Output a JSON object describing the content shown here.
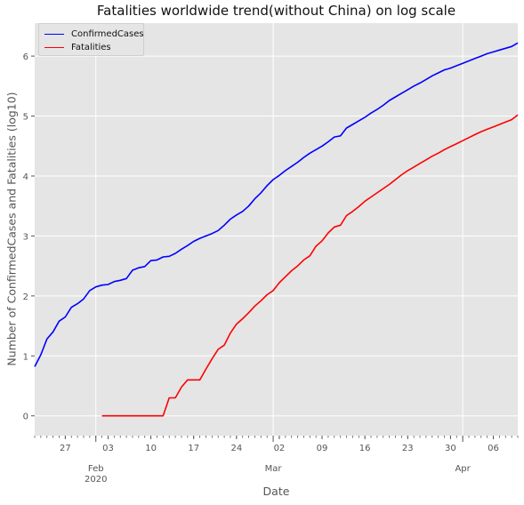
{
  "chart_data": {
    "type": "line",
    "title": "Fatalities worldwide trend(without China) on log scale",
    "xlabel": "Date",
    "ylabel": "Number of ConfirmedCases and Fatalities (log10)",
    "x_range": [
      "2020-01-22",
      "2020-04-10"
    ],
    "ylim": [
      -0.33,
      6.55
    ],
    "y_ticks": [
      0,
      1,
      2,
      3,
      4,
      5,
      6
    ],
    "x_ticks": [
      {
        "date": "2020-01-27",
        "label": "27"
      },
      {
        "date": "2020-02-03",
        "label": "03"
      },
      {
        "date": "2020-02-10",
        "label": "10"
      },
      {
        "date": "2020-02-17",
        "label": "17"
      },
      {
        "date": "2020-02-24",
        "label": "24"
      },
      {
        "date": "2020-03-02",
        "label": "02"
      },
      {
        "date": "2020-03-09",
        "label": "09"
      },
      {
        "date": "2020-03-16",
        "label": "16"
      },
      {
        "date": "2020-03-23",
        "label": "23"
      },
      {
        "date": "2020-03-30",
        "label": "30"
      },
      {
        "date": "2020-04-06",
        "label": "06"
      }
    ],
    "x_major": [
      {
        "date": "2020-02-01",
        "label": "Feb",
        "sublabel": "2020"
      },
      {
        "date": "2020-03-01",
        "label": "Mar"
      },
      {
        "date": "2020-04-01",
        "label": "Apr"
      }
    ],
    "grid": true,
    "legend_position": "top-left",
    "colors": {
      "background": "#e5e5e5",
      "grid": "#ffffff",
      "axis_text": "#555555"
    },
    "series": [
      {
        "name": "ConfirmedCases",
        "color": "#0000ff",
        "points": [
          [
            "2020-01-22",
            0.82
          ],
          [
            "2020-01-23",
            1.02
          ],
          [
            "2020-01-24",
            1.28
          ],
          [
            "2020-01-25",
            1.4
          ],
          [
            "2020-01-26",
            1.58
          ],
          [
            "2020-01-27",
            1.65
          ],
          [
            "2020-01-28",
            1.81
          ],
          [
            "2020-01-29",
            1.87
          ],
          [
            "2020-01-30",
            1.95
          ],
          [
            "2020-01-31",
            2.09
          ],
          [
            "2020-02-01",
            2.15
          ],
          [
            "2020-02-02",
            2.18
          ],
          [
            "2020-02-03",
            2.19
          ],
          [
            "2020-02-04",
            2.24
          ],
          [
            "2020-02-05",
            2.26
          ],
          [
            "2020-02-06",
            2.29
          ],
          [
            "2020-02-07",
            2.43
          ],
          [
            "2020-02-08",
            2.47
          ],
          [
            "2020-02-09",
            2.49
          ],
          [
            "2020-02-10",
            2.59
          ],
          [
            "2020-02-11",
            2.6
          ],
          [
            "2020-02-12",
            2.65
          ],
          [
            "2020-02-13",
            2.66
          ],
          [
            "2020-02-14",
            2.71
          ],
          [
            "2020-02-15",
            2.78
          ],
          [
            "2020-02-16",
            2.84
          ],
          [
            "2020-02-17",
            2.91
          ],
          [
            "2020-02-18",
            2.96
          ],
          [
            "2020-02-19",
            3.0
          ],
          [
            "2020-02-20",
            3.04
          ],
          [
            "2020-02-21",
            3.09
          ],
          [
            "2020-02-22",
            3.18
          ],
          [
            "2020-02-23",
            3.28
          ],
          [
            "2020-02-24",
            3.35
          ],
          [
            "2020-02-25",
            3.41
          ],
          [
            "2020-02-26",
            3.5
          ],
          [
            "2020-02-27",
            3.62
          ],
          [
            "2020-02-28",
            3.72
          ],
          [
            "2020-02-29",
            3.84
          ],
          [
            "2020-03-01",
            3.94
          ],
          [
            "2020-03-02",
            4.01
          ],
          [
            "2020-03-03",
            4.09
          ],
          [
            "2020-03-04",
            4.16
          ],
          [
            "2020-03-05",
            4.23
          ],
          [
            "2020-03-06",
            4.31
          ],
          [
            "2020-03-07",
            4.38
          ],
          [
            "2020-03-08",
            4.44
          ],
          [
            "2020-03-09",
            4.5
          ],
          [
            "2020-03-10",
            4.57
          ],
          [
            "2020-03-11",
            4.65
          ],
          [
            "2020-03-12",
            4.67
          ],
          [
            "2020-03-13",
            4.8
          ],
          [
            "2020-03-14",
            4.86
          ],
          [
            "2020-03-15",
            4.92
          ],
          [
            "2020-03-16",
            4.98
          ],
          [
            "2020-03-17",
            5.05
          ],
          [
            "2020-03-18",
            5.11
          ],
          [
            "2020-03-19",
            5.18
          ],
          [
            "2020-03-20",
            5.26
          ],
          [
            "2020-03-21",
            5.32
          ],
          [
            "2020-03-22",
            5.38
          ],
          [
            "2020-03-23",
            5.44
          ],
          [
            "2020-03-24",
            5.5
          ],
          [
            "2020-03-25",
            5.55
          ],
          [
            "2020-03-26",
            5.61
          ],
          [
            "2020-03-27",
            5.67
          ],
          [
            "2020-03-28",
            5.72
          ],
          [
            "2020-03-29",
            5.77
          ],
          [
            "2020-03-30",
            5.8
          ],
          [
            "2020-03-31",
            5.84
          ],
          [
            "2020-04-01",
            5.88
          ],
          [
            "2020-04-02",
            5.92
          ],
          [
            "2020-04-03",
            5.96
          ],
          [
            "2020-04-04",
            6.0
          ],
          [
            "2020-04-05",
            6.04
          ],
          [
            "2020-04-06",
            6.07
          ],
          [
            "2020-04-07",
            6.1
          ],
          [
            "2020-04-08",
            6.13
          ],
          [
            "2020-04-09",
            6.16
          ],
          [
            "2020-04-10",
            6.22
          ]
        ]
      },
      {
        "name": "Fatalities",
        "color": "#ff0000",
        "points": [
          [
            "2020-02-02",
            0.0
          ],
          [
            "2020-02-03",
            0.0
          ],
          [
            "2020-02-04",
            0.0
          ],
          [
            "2020-02-05",
            0.0
          ],
          [
            "2020-02-06",
            0.0
          ],
          [
            "2020-02-07",
            0.0
          ],
          [
            "2020-02-08",
            0.0
          ],
          [
            "2020-02-09",
            0.0
          ],
          [
            "2020-02-10",
            0.0
          ],
          [
            "2020-02-11",
            0.0
          ],
          [
            "2020-02-12",
            0.0
          ],
          [
            "2020-02-13",
            0.3
          ],
          [
            "2020-02-14",
            0.3
          ],
          [
            "2020-02-15",
            0.48
          ],
          [
            "2020-02-16",
            0.6
          ],
          [
            "2020-02-17",
            0.6
          ],
          [
            "2020-02-18",
            0.6
          ],
          [
            "2020-02-19",
            0.78
          ],
          [
            "2020-02-20",
            0.95
          ],
          [
            "2020-02-21",
            1.11
          ],
          [
            "2020-02-22",
            1.18
          ],
          [
            "2020-02-23",
            1.38
          ],
          [
            "2020-02-24",
            1.53
          ],
          [
            "2020-02-25",
            1.62
          ],
          [
            "2020-02-26",
            1.72
          ],
          [
            "2020-02-27",
            1.83
          ],
          [
            "2020-02-28",
            1.92
          ],
          [
            "2020-02-29",
            2.02
          ],
          [
            "2020-03-01",
            2.09
          ],
          [
            "2020-03-02",
            2.22
          ],
          [
            "2020-03-03",
            2.32
          ],
          [
            "2020-03-04",
            2.42
          ],
          [
            "2020-03-05",
            2.5
          ],
          [
            "2020-03-06",
            2.6
          ],
          [
            "2020-03-07",
            2.67
          ],
          [
            "2020-03-08",
            2.83
          ],
          [
            "2020-03-09",
            2.92
          ],
          [
            "2020-03-10",
            3.05
          ],
          [
            "2020-03-11",
            3.15
          ],
          [
            "2020-03-12",
            3.18
          ],
          [
            "2020-03-13",
            3.34
          ],
          [
            "2020-03-14",
            3.41
          ],
          [
            "2020-03-15",
            3.49
          ],
          [
            "2020-03-16",
            3.58
          ],
          [
            "2020-03-17",
            3.65
          ],
          [
            "2020-03-18",
            3.72
          ],
          [
            "2020-03-19",
            3.79
          ],
          [
            "2020-03-20",
            3.86
          ],
          [
            "2020-03-21",
            3.94
          ],
          [
            "2020-03-22",
            4.02
          ],
          [
            "2020-03-23",
            4.09
          ],
          [
            "2020-03-24",
            4.15
          ],
          [
            "2020-03-25",
            4.21
          ],
          [
            "2020-03-26",
            4.27
          ],
          [
            "2020-03-27",
            4.33
          ],
          [
            "2020-03-28",
            4.38
          ],
          [
            "2020-03-29",
            4.44
          ],
          [
            "2020-03-30",
            4.49
          ],
          [
            "2020-03-31",
            4.54
          ],
          [
            "2020-04-01",
            4.59
          ],
          [
            "2020-04-02",
            4.64
          ],
          [
            "2020-04-03",
            4.69
          ],
          [
            "2020-04-04",
            4.74
          ],
          [
            "2020-04-05",
            4.78
          ],
          [
            "2020-04-06",
            4.82
          ],
          [
            "2020-04-07",
            4.86
          ],
          [
            "2020-04-08",
            4.9
          ],
          [
            "2020-04-09",
            4.94
          ],
          [
            "2020-04-10",
            5.02
          ]
        ]
      }
    ]
  }
}
